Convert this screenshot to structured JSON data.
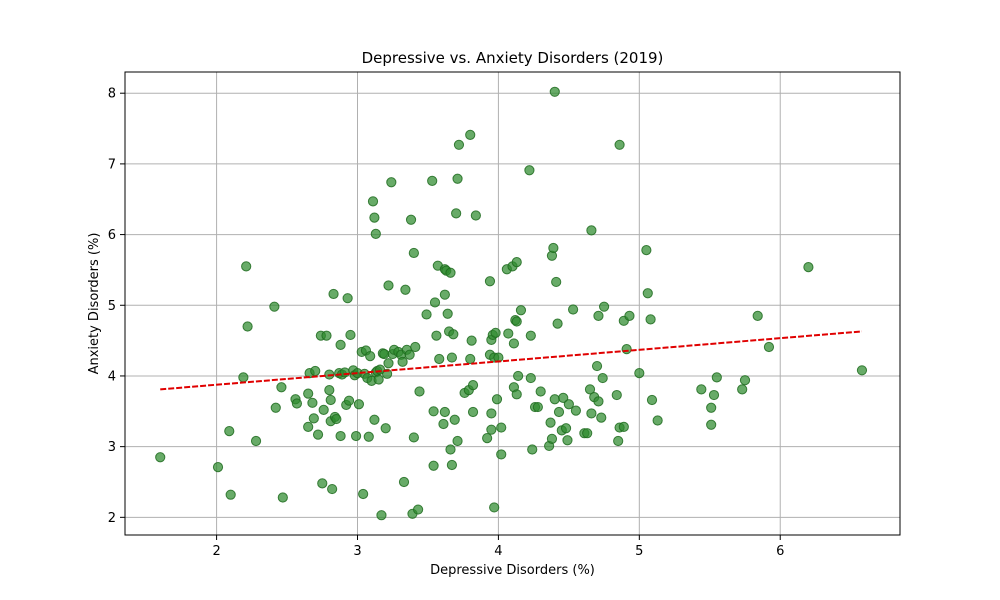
{
  "chart_data": {
    "type": "scatter",
    "title": "Depressive vs. Anxiety Disorders (2019)",
    "xlabel": "Depressive Disorders (%)",
    "ylabel": "Anxiety Disorders (%)",
    "xlim": [
      1.35,
      6.85
    ],
    "ylim": [
      1.75,
      8.3
    ],
    "xticks": [
      2,
      3,
      4,
      5,
      6
    ],
    "yticks": [
      2,
      3,
      4,
      5,
      6,
      7,
      8
    ],
    "grid": true,
    "colors": {
      "points_fill": "#2e8b2e",
      "points_edge": "#1f6b1f",
      "trend": "#e00000",
      "grid": "#b0b0b0"
    },
    "trendline": {
      "style": "dashed",
      "x": [
        1.6,
        6.58
      ],
      "y": [
        3.81,
        4.63
      ]
    },
    "points": [
      [
        1.6,
        2.85
      ],
      [
        2.01,
        2.71
      ],
      [
        2.09,
        3.22
      ],
      [
        2.1,
        2.32
      ],
      [
        2.19,
        3.98
      ],
      [
        2.21,
        5.55
      ],
      [
        2.22,
        4.7
      ],
      [
        2.28,
        3.08
      ],
      [
        2.41,
        4.98
      ],
      [
        2.42,
        3.55
      ],
      [
        2.46,
        3.84
      ],
      [
        2.47,
        2.28
      ],
      [
        2.56,
        3.67
      ],
      [
        2.57,
        3.61
      ],
      [
        2.65,
        3.75
      ],
      [
        2.65,
        3.28
      ],
      [
        2.66,
        4.04
      ],
      [
        2.68,
        3.62
      ],
      [
        2.69,
        3.4
      ],
      [
        2.7,
        4.07
      ],
      [
        2.72,
        3.17
      ],
      [
        2.74,
        4.57
      ],
      [
        2.75,
        2.48
      ],
      [
        2.76,
        3.52
      ],
      [
        2.78,
        4.57
      ],
      [
        2.8,
        4.02
      ],
      [
        2.8,
        3.8
      ],
      [
        2.81,
        3.66
      ],
      [
        2.81,
        3.36
      ],
      [
        2.82,
        2.4
      ],
      [
        2.83,
        5.16
      ],
      [
        2.84,
        3.42
      ],
      [
        2.85,
        3.39
      ],
      [
        2.87,
        4.04
      ],
      [
        2.88,
        4.44
      ],
      [
        2.88,
        3.15
      ],
      [
        2.89,
        4.02
      ],
      [
        2.91,
        4.05
      ],
      [
        2.92,
        3.59
      ],
      [
        2.93,
        5.1
      ],
      [
        2.94,
        3.65
      ],
      [
        2.95,
        4.58
      ],
      [
        2.97,
        4.08
      ],
      [
        2.98,
        4.01
      ],
      [
        2.99,
        3.15
      ],
      [
        3.0,
        4.04
      ],
      [
        3.01,
        3.6
      ],
      [
        3.03,
        4.34
      ],
      [
        3.04,
        2.33
      ],
      [
        3.05,
        4.03
      ],
      [
        3.06,
        4.36
      ],
      [
        3.07,
        3.97
      ],
      [
        3.08,
        3.14
      ],
      [
        3.09,
        4.28
      ],
      [
        3.1,
        3.93
      ],
      [
        3.11,
        6.47
      ],
      [
        3.12,
        6.24
      ],
      [
        3.12,
        3.38
      ],
      [
        3.13,
        6.01
      ],
      [
        3.13,
        4.05
      ],
      [
        3.14,
        4.07
      ],
      [
        3.15,
        3.95
      ],
      [
        3.16,
        4.09
      ],
      [
        3.17,
        2.03
      ],
      [
        3.18,
        4.32
      ],
      [
        3.19,
        4.31
      ],
      [
        3.2,
        3.26
      ],
      [
        3.21,
        4.03
      ],
      [
        3.22,
        5.28
      ],
      [
        3.22,
        4.18
      ],
      [
        3.24,
        6.74
      ],
      [
        3.25,
        4.31
      ],
      [
        3.26,
        4.37
      ],
      [
        3.29,
        4.34
      ],
      [
        3.31,
        4.3
      ],
      [
        3.32,
        4.2
      ],
      [
        3.33,
        2.5
      ],
      [
        3.34,
        5.22
      ],
      [
        3.35,
        4.37
      ],
      [
        3.37,
        4.3
      ],
      [
        3.38,
        6.21
      ],
      [
        3.39,
        2.05
      ],
      [
        3.4,
        5.74
      ],
      [
        3.4,
        3.13
      ],
      [
        3.41,
        4.41
      ],
      [
        3.43,
        2.11
      ],
      [
        3.44,
        3.78
      ],
      [
        3.49,
        4.87
      ],
      [
        3.53,
        6.76
      ],
      [
        3.54,
        2.73
      ],
      [
        3.54,
        3.5
      ],
      [
        3.55,
        5.04
      ],
      [
        3.56,
        4.57
      ],
      [
        3.57,
        5.56
      ],
      [
        3.58,
        4.24
      ],
      [
        3.61,
        3.32
      ],
      [
        3.62,
        5.51
      ],
      [
        3.62,
        5.15
      ],
      [
        3.62,
        3.49
      ],
      [
        3.63,
        5.49
      ],
      [
        3.64,
        4.88
      ],
      [
        3.65,
        4.63
      ],
      [
        3.66,
        5.46
      ],
      [
        3.66,
        2.96
      ],
      [
        3.67,
        2.74
      ],
      [
        3.67,
        4.26
      ],
      [
        3.68,
        4.59
      ],
      [
        3.69,
        3.38
      ],
      [
        3.7,
        6.3
      ],
      [
        3.71,
        6.79
      ],
      [
        3.71,
        3.08
      ],
      [
        3.72,
        7.27
      ],
      [
        3.76,
        3.76
      ],
      [
        3.79,
        3.8
      ],
      [
        3.8,
        7.41
      ],
      [
        3.8,
        4.24
      ],
      [
        3.81,
        4.5
      ],
      [
        3.82,
        3.87
      ],
      [
        3.82,
        3.49
      ],
      [
        3.84,
        6.27
      ],
      [
        3.92,
        3.12
      ],
      [
        3.94,
        5.34
      ],
      [
        3.94,
        4.3
      ],
      [
        3.95,
        4.51
      ],
      [
        3.95,
        3.24
      ],
      [
        3.95,
        3.47
      ],
      [
        3.96,
        4.58
      ],
      [
        3.97,
        4.26
      ],
      [
        3.97,
        2.14
      ],
      [
        3.98,
        4.61
      ],
      [
        3.99,
        3.67
      ],
      [
        4.0,
        4.26
      ],
      [
        4.02,
        3.27
      ],
      [
        4.02,
        2.89
      ],
      [
        4.06,
        5.51
      ],
      [
        4.07,
        4.6
      ],
      [
        4.1,
        5.55
      ],
      [
        4.11,
        4.46
      ],
      [
        4.11,
        3.84
      ],
      [
        4.12,
        4.79
      ],
      [
        4.13,
        4.77
      ],
      [
        4.13,
        5.61
      ],
      [
        4.13,
        3.74
      ],
      [
        4.14,
        4.0
      ],
      [
        4.16,
        4.93
      ],
      [
        4.22,
        6.91
      ],
      [
        4.23,
        4.57
      ],
      [
        4.23,
        3.97
      ],
      [
        4.24,
        2.96
      ],
      [
        4.26,
        3.56
      ],
      [
        4.28,
        3.56
      ],
      [
        4.3,
        3.78
      ],
      [
        4.36,
        3.01
      ],
      [
        4.37,
        3.34
      ],
      [
        4.38,
        5.7
      ],
      [
        4.38,
        3.11
      ],
      [
        4.39,
        5.81
      ],
      [
        4.4,
        8.02
      ],
      [
        4.4,
        3.67
      ],
      [
        4.41,
        5.33
      ],
      [
        4.42,
        4.74
      ],
      [
        4.43,
        3.49
      ],
      [
        4.45,
        3.23
      ],
      [
        4.46,
        3.69
      ],
      [
        4.48,
        3.26
      ],
      [
        4.49,
        3.09
      ],
      [
        4.5,
        3.6
      ],
      [
        4.53,
        4.94
      ],
      [
        4.55,
        3.51
      ],
      [
        4.61,
        3.19
      ],
      [
        4.63,
        3.19
      ],
      [
        4.65,
        3.81
      ],
      [
        4.66,
        3.47
      ],
      [
        4.66,
        6.06
      ],
      [
        4.68,
        3.7
      ],
      [
        4.7,
        4.14
      ],
      [
        4.71,
        4.85
      ],
      [
        4.71,
        3.64
      ],
      [
        4.73,
        3.41
      ],
      [
        4.74,
        3.97
      ],
      [
        4.75,
        4.98
      ],
      [
        4.84,
        3.73
      ],
      [
        4.85,
        3.08
      ],
      [
        4.86,
        3.27
      ],
      [
        4.86,
        7.27
      ],
      [
        4.89,
        4.78
      ],
      [
        4.89,
        3.28
      ],
      [
        4.91,
        4.38
      ],
      [
        4.93,
        4.85
      ],
      [
        5.0,
        4.04
      ],
      [
        5.05,
        5.78
      ],
      [
        5.06,
        5.17
      ],
      [
        5.08,
        4.8
      ],
      [
        5.09,
        3.66
      ],
      [
        5.13,
        3.37
      ],
      [
        5.44,
        3.81
      ],
      [
        5.51,
        3.31
      ],
      [
        5.51,
        3.55
      ],
      [
        5.53,
        3.73
      ],
      [
        5.55,
        3.98
      ],
      [
        5.73,
        3.81
      ],
      [
        5.75,
        3.94
      ],
      [
        5.84,
        4.85
      ],
      [
        5.92,
        4.41
      ],
      [
        6.2,
        5.54
      ],
      [
        6.58,
        4.08
      ]
    ]
  }
}
